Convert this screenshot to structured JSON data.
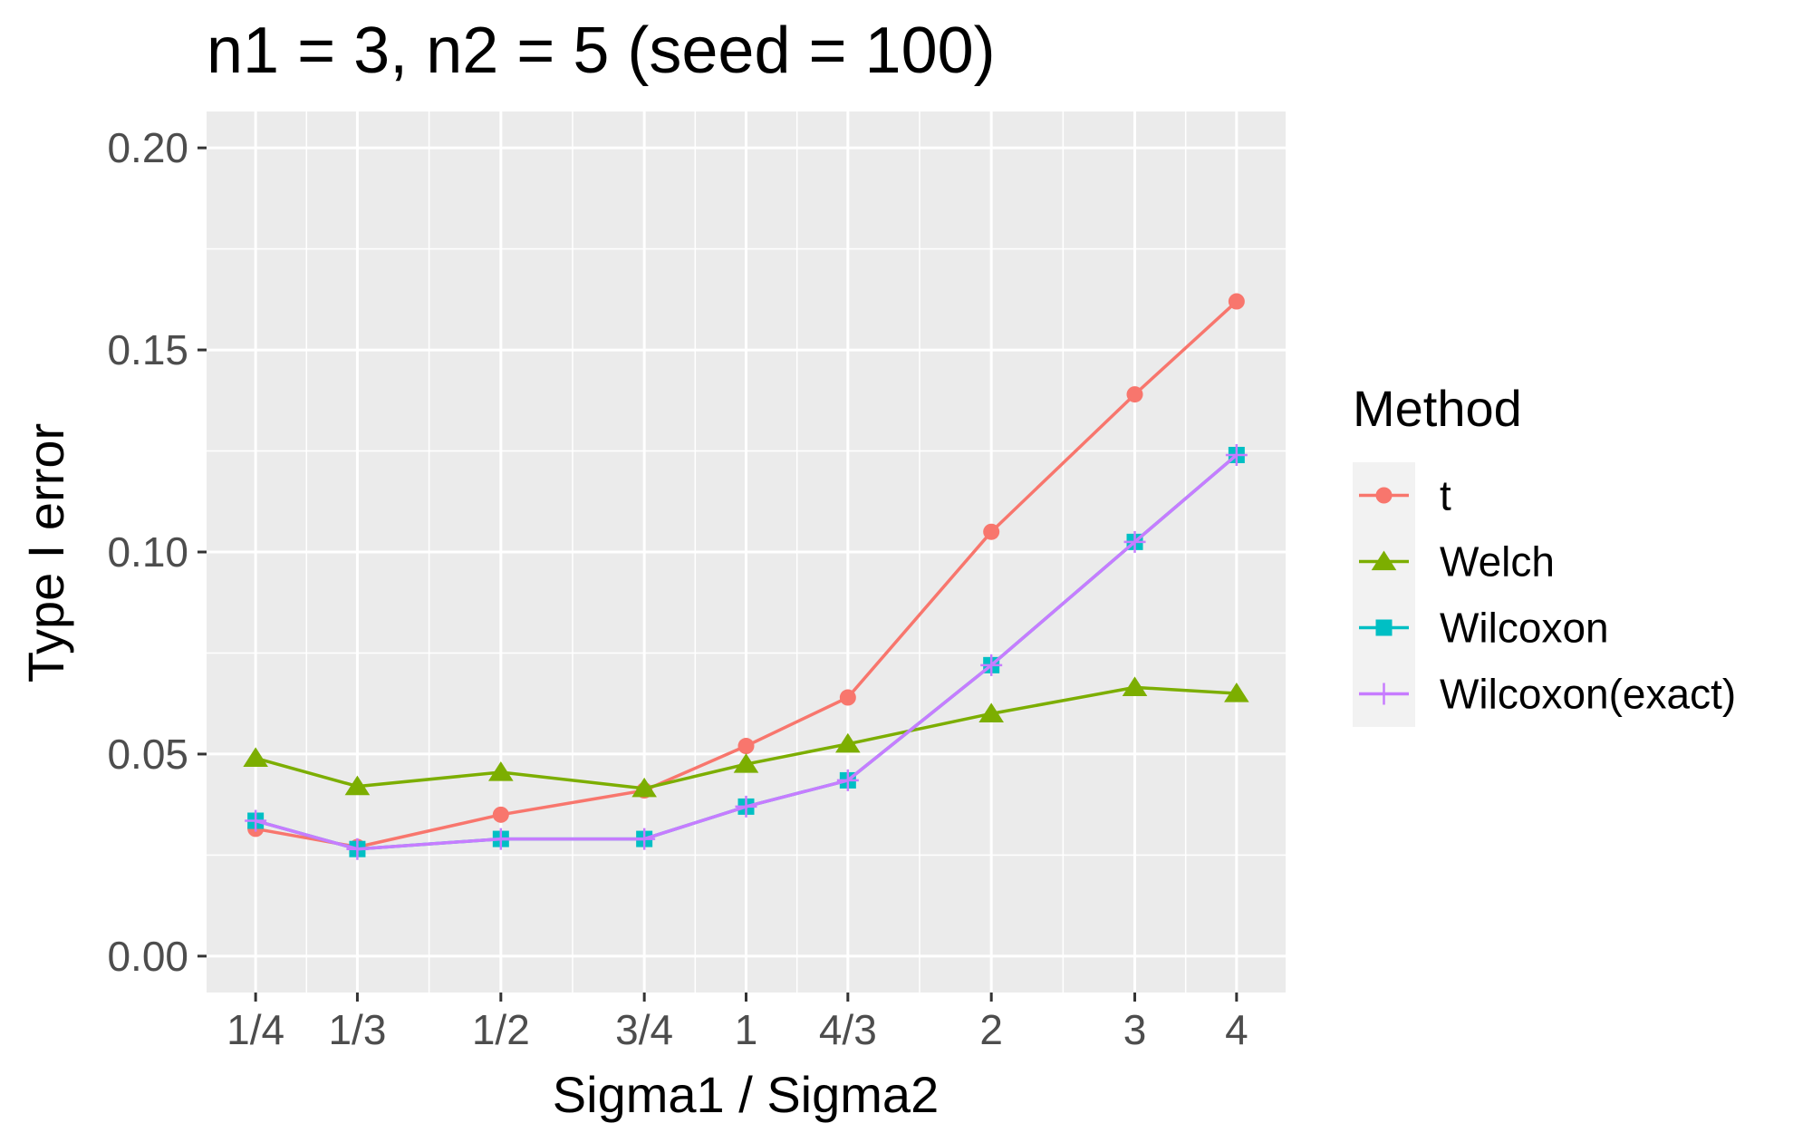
{
  "chart_data": {
    "type": "line",
    "title": "n1 = 3, n2 = 5 (seed = 100)",
    "xlabel": "Sigma1 / Sigma2",
    "ylabel": "Type I error",
    "x_scale": "log",
    "x": [
      0.25,
      0.3333,
      0.5,
      0.75,
      1,
      1.3333,
      2,
      3,
      4
    ],
    "x_tick_labels": [
      "1/4",
      "1/3",
      "1/2",
      "3/4",
      "1",
      "4/3",
      "2",
      "3",
      "4"
    ],
    "y_ticks": [
      0.0,
      0.05,
      0.1,
      0.15,
      0.2
    ],
    "y_tick_labels": [
      "0.00",
      "0.05",
      "0.10",
      "0.15",
      "0.20"
    ],
    "ylim": [
      -0.009,
      0.209
    ],
    "grid": true,
    "legend_position": "right",
    "legend_title": "Method",
    "series": [
      {
        "name": "t",
        "color": "#F8766D",
        "marker": "circle",
        "values": [
          0.0315,
          0.027,
          0.035,
          0.041,
          0.052,
          0.064,
          0.105,
          0.139,
          0.162
        ]
      },
      {
        "name": "Welch",
        "color": "#7CAE00",
        "marker": "triangle",
        "values": [
          0.049,
          0.042,
          0.0455,
          0.0415,
          0.0475,
          0.0525,
          0.06,
          0.0665,
          0.065
        ]
      },
      {
        "name": "Wilcoxon",
        "color": "#00BFC4",
        "marker": "square",
        "values": [
          0.0335,
          0.0265,
          0.029,
          0.029,
          0.037,
          0.0435,
          0.072,
          0.1025,
          0.124
        ]
      },
      {
        "name": "Wilcoxon(exact)",
        "color": "#C77CFF",
        "marker": "plus",
        "values": [
          0.0335,
          0.0265,
          0.029,
          0.029,
          0.037,
          0.0435,
          0.072,
          0.1025,
          0.124
        ]
      }
    ]
  }
}
